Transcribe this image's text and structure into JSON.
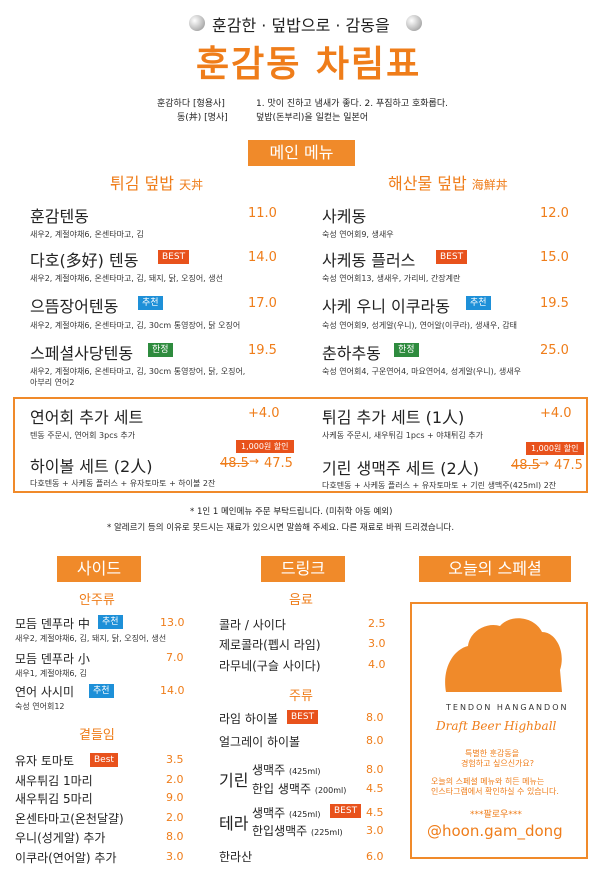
{
  "header": {
    "subtitle": "훈감한 · 덮밥으로 · 감동을",
    "title": "훈감동 차림표",
    "def1_word": "훈감하다 [형용사]",
    "def1_text": "1. 맛이 진하고 냄새가 좋다. 2. 푸짐하고 호화롭다.",
    "def2_word": "동(丼) [명사]",
    "def2_text": "덮밥(돈부리)을 일컫는 일본어"
  },
  "main_menu": {
    "banner": "메인 메뉴",
    "left_title": "튀김 덮밥",
    "left_title_cn": "天丼",
    "right_title": "해산물 덮밥",
    "right_title_cn": "海鮮丼",
    "left_items": [
      {
        "name": "훈감텐동",
        "price": "11.0",
        "tag": "",
        "desc": "새우2, 계절야채6, 온센타마고, 김"
      },
      {
        "name": "다호(多好) 텐동",
        "price": "14.0",
        "tag": "BEST",
        "desc": "새우2, 계절야채6, 온센타마고, 김, 돼지, 닭, 오징어, 생선"
      },
      {
        "name": "으뜸장어텐동",
        "price": "17.0",
        "tag": "추천",
        "desc": "새우2, 계절야채6, 온센타마고, 김, 30cm 통영장어, 닭 오징어"
      },
      {
        "name": "스페셜사당텐동",
        "price": "19.5",
        "tag": "한정",
        "desc": "새우2, 계절야채6, 온센타마고, 김, 30cm 통영장어, 닭, 오징어,",
        "desc2": "아부리 연어2"
      }
    ],
    "right_items": [
      {
        "name": "사케동",
        "price": "12.0",
        "tag": "",
        "desc": "숙성 연어회9, 생새우"
      },
      {
        "name": "사케동 플러스",
        "price": "15.0",
        "tag": "BEST",
        "desc": "숙성 연어회13, 생새우, 가리비, 간장계란"
      },
      {
        "name": "사케 우니 이쿠라동",
        "price": "19.5",
        "tag": "추천",
        "desc": "숙성 연어회9, 성게알(우니), 연어알(이쿠라), 생새우, 감태"
      },
      {
        "name": "춘하추동",
        "price": "25.0",
        "tag": "한정",
        "desc": "숙성 연어회4, 구운연어4, 마요연어4, 성게알(우니), 생새우"
      }
    ]
  },
  "sets": {
    "left": [
      {
        "name": "연어회 추가 세트",
        "price": "+4.0",
        "desc": "텐동 주문시, 연어회 3pcs 추가"
      },
      {
        "name": "하이볼 세트 (2人)",
        "old_price": "48.5",
        "price": "47.5",
        "discount": "1,000원 할인",
        "desc": "다호텐동 + 사케동 플러스 + 유자토마토 + 하이볼 2잔"
      }
    ],
    "right": [
      {
        "name": "튀김 추가 세트 (1人)",
        "price": "+4.0",
        "desc": "사케동 주문시, 새우튀김 1pcs + 야채튀김 추가"
      },
      {
        "name": "기린 생맥주 세트 (2人)",
        "old_price": "48.5",
        "price": "47.5",
        "discount": "1,000원 할인",
        "desc": "다호텐동 + 사케동 플러스 + 유자토마토 + 기린 생맥주(425ml) 2잔"
      }
    ]
  },
  "notes": {
    "note1": "* 1인 1 메인메뉴 주문 부탁드립니다. (미취학 아동 예외)",
    "note2": "* 알레르기 등의 이유로 못드시는 재료가 있으시면 말씀해 주세요. 다른 재료로 바꿔 드리겠습니다."
  },
  "side": {
    "banner": "사이드",
    "snack_title": "안주류",
    "snack_items": [
      {
        "name": "모듬 덴푸라 中",
        "price": "13.0",
        "tag": "추천",
        "desc": "새우2, 계절야채6, 김, 돼지, 닭, 오징어, 생선"
      },
      {
        "name": "모듬 덴푸라 小",
        "price": "7.0",
        "tag": "",
        "desc": "새우1, 계절야채6, 김"
      },
      {
        "name": "연어 사시미",
        "price": "14.0",
        "tag": "추천",
        "desc": "숙성 연어회12"
      }
    ],
    "extra_title": "곁들임",
    "extra_items": [
      {
        "name": "유자 토마토",
        "price": "3.5",
        "tag": "Best"
      },
      {
        "name": "새우튀김 1마리",
        "price": "2.0"
      },
      {
        "name": "새우튀김 5마리",
        "price": "9.0"
      },
      {
        "name": "온센타마고(온천달걀)",
        "price": "2.0"
      },
      {
        "name": "우니(성게알) 추가",
        "price": "8.0"
      },
      {
        "name": "이쿠라(연어알) 추가",
        "price": "3.0"
      }
    ]
  },
  "drink": {
    "banner": "드링크",
    "soda_title": "음료",
    "soda_items": [
      {
        "name": "콜라 / 사이다",
        "price": "2.5"
      },
      {
        "name": "제로콜라(펩시 라임)",
        "price": "3.0"
      },
      {
        "name": "라무네(구슬 사이다)",
        "price": "4.0"
      }
    ],
    "alcohol_title": "주류",
    "highball_items": [
      {
        "name": "라임 하이볼",
        "price": "8.0",
        "tag": "BEST"
      },
      {
        "name": "얼그레이 하이볼",
        "price": "8.0"
      }
    ],
    "kirin_label": "기린",
    "kirin_items": [
      {
        "name": "생맥주",
        "size": "(425ml)",
        "price": "8.0"
      },
      {
        "name": "한입 생맥주",
        "size": "(200ml)",
        "price": "4.5"
      }
    ],
    "terra_label": "테라",
    "terra_items": [
      {
        "name": "생맥주",
        "size": "(425ml)",
        "price": "4.5",
        "tag": "BEST"
      },
      {
        "name": "한입생맥주",
        "size": "(225ml)",
        "price": "3.0"
      }
    ],
    "hallasan": {
      "name": "한라산",
      "price": "6.0"
    }
  },
  "special": {
    "banner": "오늘의 스페셜",
    "logo_line1": "TENDON HANGANDON",
    "logo_line2": "Draft Beer Highball",
    "text1": "특별한 훈감동을",
    "text2": "경험하고 싶으신가요?",
    "text3": "오늘의 스페셜 메뉴와 히든 메뉴는",
    "text4": "인스타그램에서 확인하실 수 있습니다.",
    "follow": "***팔로우***",
    "handle": "@hoon.gam_dong"
  }
}
